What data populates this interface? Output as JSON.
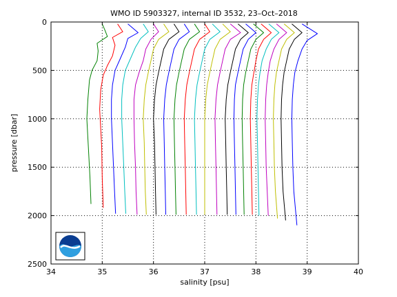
{
  "chart_data": {
    "type": "line",
    "title": "WMO ID 5903327, internal ID 3532, 23–Oct–2018",
    "xlabel": "salinity [psu]",
    "ylabel": "pressure [dbar]",
    "xlim": [
      34,
      40
    ],
    "ylim": [
      0,
      2500
    ],
    "y_reversed": true,
    "grid": "dotted",
    "xticks": [
      "34",
      "35",
      "36",
      "37",
      "38",
      "39",
      "40"
    ],
    "yticks": [
      "0",
      "500",
      "1000",
      "1500",
      "2000",
      "2500"
    ],
    "logo": "NOAA",
    "series": [
      {
        "color": "#008000",
        "points": [
          [
            35.0,
            20
          ],
          [
            35.05,
            80
          ],
          [
            35.1,
            150
          ],
          [
            34.9,
            220
          ],
          [
            34.92,
            300
          ],
          [
            34.9,
            400
          ],
          [
            34.8,
            500
          ],
          [
            34.75,
            600
          ],
          [
            34.72,
            800
          ],
          [
            34.7,
            1000
          ],
          [
            34.72,
            1200
          ],
          [
            34.74,
            1400
          ],
          [
            34.76,
            1600
          ],
          [
            34.78,
            1880
          ]
        ]
      },
      {
        "color": "#ff0000",
        "points": [
          [
            35.3,
            20
          ],
          [
            35.4,
            100
          ],
          [
            35.2,
            160
          ],
          [
            35.25,
            240
          ],
          [
            35.2,
            350
          ],
          [
            35.1,
            450
          ],
          [
            35.02,
            550
          ],
          [
            34.97,
            700
          ],
          [
            34.95,
            900
          ],
          [
            34.97,
            1100
          ],
          [
            34.99,
            1300
          ],
          [
            35.0,
            1600
          ],
          [
            35.02,
            1920
          ]
        ]
      },
      {
        "color": "#0000ff",
        "points": [
          [
            35.5,
            20
          ],
          [
            35.7,
            110
          ],
          [
            35.5,
            170
          ],
          [
            35.45,
            260
          ],
          [
            35.35,
            380
          ],
          [
            35.25,
            500
          ],
          [
            35.2,
            650
          ],
          [
            35.18,
            800
          ],
          [
            35.18,
            1000
          ],
          [
            35.2,
            1250
          ],
          [
            35.22,
            1500
          ],
          [
            35.24,
            1750
          ],
          [
            35.26,
            1980
          ]
        ]
      },
      {
        "color": "#00bfbf",
        "points": [
          [
            35.8,
            20
          ],
          [
            35.9,
            100
          ],
          [
            35.75,
            170
          ],
          [
            35.65,
            260
          ],
          [
            35.55,
            380
          ],
          [
            35.45,
            500
          ],
          [
            35.4,
            650
          ],
          [
            35.38,
            800
          ],
          [
            35.38,
            1000
          ],
          [
            35.4,
            1250
          ],
          [
            35.42,
            1500
          ],
          [
            35.44,
            1750
          ],
          [
            35.46,
            1980
          ]
        ]
      },
      {
        "color": "#bf00bf",
        "points": [
          [
            36.0,
            20
          ],
          [
            36.1,
            100
          ],
          [
            35.95,
            180
          ],
          [
            35.85,
            280
          ],
          [
            35.8,
            400
          ],
          [
            35.72,
            520
          ],
          [
            35.65,
            650
          ],
          [
            35.62,
            800
          ],
          [
            35.62,
            1000
          ],
          [
            35.63,
            1250
          ],
          [
            35.65,
            1500
          ],
          [
            35.66,
            1750
          ],
          [
            35.68,
            1990
          ]
        ]
      },
      {
        "color": "#bfbf00",
        "points": [
          [
            36.2,
            20
          ],
          [
            36.3,
            100
          ],
          [
            36.1,
            180
          ],
          [
            36.0,
            280
          ],
          [
            35.95,
            400
          ],
          [
            35.9,
            520
          ],
          [
            35.85,
            650
          ],
          [
            35.82,
            800
          ],
          [
            35.8,
            1000
          ],
          [
            35.82,
            1250
          ],
          [
            35.83,
            1500
          ],
          [
            35.84,
            1750
          ],
          [
            35.86,
            1990
          ]
        ]
      },
      {
        "color": "#000000",
        "points": [
          [
            36.4,
            20
          ],
          [
            36.5,
            100
          ],
          [
            36.3,
            180
          ],
          [
            36.2,
            280
          ],
          [
            36.15,
            400
          ],
          [
            36.1,
            520
          ],
          [
            36.05,
            650
          ],
          [
            36.02,
            800
          ],
          [
            36.0,
            1000
          ],
          [
            36.02,
            1250
          ],
          [
            36.03,
            1500
          ],
          [
            36.04,
            1750
          ],
          [
            36.05,
            1990
          ]
        ]
      },
      {
        "color": "#0000ff",
        "points": [
          [
            36.6,
            20
          ],
          [
            36.7,
            100
          ],
          [
            36.5,
            180
          ],
          [
            36.4,
            280
          ],
          [
            36.35,
            400
          ],
          [
            36.3,
            520
          ],
          [
            36.25,
            650
          ],
          [
            36.22,
            800
          ],
          [
            36.2,
            1000
          ],
          [
            36.21,
            1250
          ],
          [
            36.22,
            1500
          ],
          [
            36.23,
            1750
          ],
          [
            36.24,
            1990
          ]
        ]
      },
      {
        "color": "#008000",
        "points": [
          [
            36.8,
            20
          ],
          [
            36.9,
            100
          ],
          [
            36.7,
            180
          ],
          [
            36.6,
            280
          ],
          [
            36.55,
            400
          ],
          [
            36.5,
            520
          ],
          [
            36.45,
            650
          ],
          [
            36.42,
            800
          ],
          [
            36.4,
            1000
          ],
          [
            36.41,
            1250
          ],
          [
            36.42,
            1500
          ],
          [
            36.43,
            1750
          ],
          [
            36.44,
            1990
          ]
        ]
      },
      {
        "color": "#ff0000",
        "points": [
          [
            37.0,
            20
          ],
          [
            37.1,
            100
          ],
          [
            36.9,
            180
          ],
          [
            36.8,
            280
          ],
          [
            36.75,
            400
          ],
          [
            36.7,
            520
          ],
          [
            36.65,
            650
          ],
          [
            36.62,
            800
          ],
          [
            36.6,
            1000
          ],
          [
            36.61,
            1250
          ],
          [
            36.62,
            1500
          ],
          [
            36.63,
            1750
          ],
          [
            36.64,
            1990
          ]
        ]
      },
      {
        "color": "#00bfbf",
        "points": [
          [
            37.15,
            20
          ],
          [
            37.3,
            100
          ],
          [
            37.1,
            180
          ],
          [
            37.0,
            280
          ],
          [
            36.95,
            400
          ],
          [
            36.9,
            520
          ],
          [
            36.85,
            650
          ],
          [
            36.82,
            800
          ],
          [
            36.8,
            1000
          ],
          [
            36.81,
            1250
          ],
          [
            36.82,
            1500
          ],
          [
            36.83,
            1750
          ],
          [
            36.84,
            1990
          ]
        ]
      },
      {
        "color": "#bfbf00",
        "points": [
          [
            37.35,
            20
          ],
          [
            37.5,
            100
          ],
          [
            37.3,
            180
          ],
          [
            37.2,
            280
          ],
          [
            37.15,
            400
          ],
          [
            37.1,
            520
          ],
          [
            37.05,
            650
          ],
          [
            37.02,
            800
          ],
          [
            37.0,
            1000
          ],
          [
            37.0,
            1250
          ],
          [
            37.0,
            1500
          ],
          [
            37.0,
            1750
          ],
          [
            37.0,
            1990
          ]
        ]
      },
      {
        "color": "#bf00bf",
        "points": [
          [
            37.5,
            20
          ],
          [
            37.7,
            110
          ],
          [
            37.5,
            180
          ],
          [
            37.4,
            280
          ],
          [
            37.35,
            400
          ],
          [
            37.3,
            520
          ],
          [
            37.25,
            650
          ],
          [
            37.22,
            800
          ],
          [
            37.2,
            1000
          ],
          [
            37.21,
            1250
          ],
          [
            37.22,
            1500
          ],
          [
            37.23,
            1750
          ],
          [
            37.24,
            1990
          ]
        ]
      },
      {
        "color": "#000000",
        "points": [
          [
            37.65,
            20
          ],
          [
            37.85,
            110
          ],
          [
            37.7,
            180
          ],
          [
            37.6,
            280
          ],
          [
            37.55,
            400
          ],
          [
            37.5,
            520
          ],
          [
            37.45,
            650
          ],
          [
            37.42,
            800
          ],
          [
            37.4,
            1000
          ],
          [
            37.41,
            1250
          ],
          [
            37.42,
            1500
          ],
          [
            37.43,
            1750
          ],
          [
            37.44,
            1990
          ]
        ]
      },
      {
        "color": "#0000ff",
        "points": [
          [
            37.8,
            20
          ],
          [
            38.0,
            110
          ],
          [
            37.85,
            180
          ],
          [
            37.75,
            280
          ],
          [
            37.7,
            400
          ],
          [
            37.65,
            520
          ],
          [
            37.6,
            650
          ],
          [
            37.58,
            800
          ],
          [
            37.57,
            1000
          ],
          [
            37.58,
            1250
          ],
          [
            37.59,
            1500
          ],
          [
            37.6,
            1750
          ],
          [
            37.61,
            1990
          ]
        ]
      },
      {
        "color": "#008000",
        "points": [
          [
            37.95,
            20
          ],
          [
            38.15,
            110
          ],
          [
            38.0,
            180
          ],
          [
            37.9,
            280
          ],
          [
            37.85,
            400
          ],
          [
            37.8,
            520
          ],
          [
            37.76,
            650
          ],
          [
            37.74,
            800
          ],
          [
            37.73,
            1000
          ],
          [
            37.74,
            1250
          ],
          [
            37.75,
            1500
          ],
          [
            37.76,
            1750
          ],
          [
            37.77,
            1990
          ]
        ]
      },
      {
        "color": "#ff0000",
        "points": [
          [
            38.1,
            20
          ],
          [
            38.3,
            110
          ],
          [
            38.15,
            180
          ],
          [
            38.05,
            280
          ],
          [
            38.0,
            400
          ],
          [
            37.96,
            520
          ],
          [
            37.92,
            650
          ],
          [
            37.9,
            800
          ],
          [
            37.89,
            1000
          ],
          [
            37.9,
            1250
          ],
          [
            37.91,
            1500
          ],
          [
            37.92,
            1750
          ],
          [
            37.93,
            1990
          ]
        ]
      },
      {
        "color": "#00bfbf",
        "points": [
          [
            38.25,
            20
          ],
          [
            38.45,
            110
          ],
          [
            38.3,
            180
          ],
          [
            38.2,
            280
          ],
          [
            38.12,
            400
          ],
          [
            38.08,
            520
          ],
          [
            38.05,
            650
          ],
          [
            38.03,
            800
          ],
          [
            38.02,
            1000
          ],
          [
            38.03,
            1250
          ],
          [
            38.04,
            1500
          ],
          [
            38.05,
            1750
          ],
          [
            38.06,
            2000
          ]
        ]
      },
      {
        "color": "#bf00bf",
        "points": [
          [
            38.4,
            20
          ],
          [
            38.6,
            110
          ],
          [
            38.45,
            180
          ],
          [
            38.35,
            280
          ],
          [
            38.28,
            400
          ],
          [
            38.24,
            520
          ],
          [
            38.21,
            650
          ],
          [
            38.19,
            800
          ],
          [
            38.18,
            1000
          ],
          [
            38.19,
            1250
          ],
          [
            38.2,
            1500
          ],
          [
            38.22,
            1750
          ],
          [
            38.24,
            2000
          ]
        ]
      },
      {
        "color": "#bfbf00",
        "points": [
          [
            38.55,
            20
          ],
          [
            38.75,
            110
          ],
          [
            38.6,
            180
          ],
          [
            38.5,
            280
          ],
          [
            38.45,
            400
          ],
          [
            38.4,
            520
          ],
          [
            38.37,
            650
          ],
          [
            38.35,
            800
          ],
          [
            38.34,
            1000
          ],
          [
            38.35,
            1250
          ],
          [
            38.36,
            1500
          ],
          [
            38.38,
            1750
          ],
          [
            38.42,
            2030
          ]
        ]
      },
      {
        "color": "#000000",
        "points": [
          [
            38.7,
            20
          ],
          [
            38.9,
            110
          ],
          [
            38.75,
            180
          ],
          [
            38.65,
            280
          ],
          [
            38.6,
            400
          ],
          [
            38.55,
            520
          ],
          [
            38.52,
            650
          ],
          [
            38.5,
            800
          ],
          [
            38.49,
            1000
          ],
          [
            38.5,
            1250
          ],
          [
            38.51,
            1500
          ],
          [
            38.53,
            1750
          ],
          [
            38.58,
            2050
          ]
        ]
      },
      {
        "color": "#0000ff",
        "points": [
          [
            38.9,
            20
          ],
          [
            39.2,
            120
          ],
          [
            39.0,
            190
          ],
          [
            38.9,
            280
          ],
          [
            38.82,
            400
          ],
          [
            38.76,
            520
          ],
          [
            38.73,
            650
          ],
          [
            38.71,
            800
          ],
          [
            38.7,
            1000
          ],
          [
            38.71,
            1250
          ],
          [
            38.72,
            1500
          ],
          [
            38.74,
            1750
          ],
          [
            38.8,
            2100
          ]
        ]
      }
    ]
  }
}
